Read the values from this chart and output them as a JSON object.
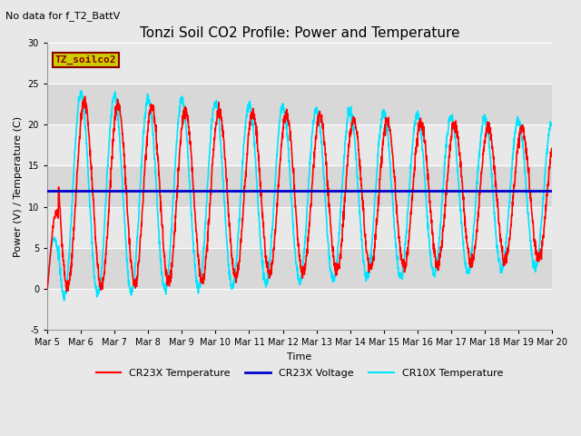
{
  "title": "Tonzi Soil CO2 Profile: Power and Temperature",
  "subtitle": "No data for f_T2_BattV",
  "ylabel": "Power (V) / Temperature (C)",
  "xlabel": "Time",
  "ylim": [
    -5,
    30
  ],
  "yticks": [
    -5,
    0,
    5,
    10,
    15,
    20,
    25,
    30
  ],
  "xtick_labels": [
    "Mar 5",
    "Mar 6",
    "Mar 7",
    "Mar 8",
    "Mar 9",
    "Mar 10",
    "Mar 11",
    "Mar 12",
    "Mar 13",
    "Mar 14",
    "Mar 15",
    "Mar 16",
    "Mar 17",
    "Mar 18",
    "Mar 19",
    "Mar 20"
  ],
  "voltage_level": 12.0,
  "cr23x_color": "#ff0000",
  "cr10x_color": "#00e5ff",
  "voltage_color": "#0000cc",
  "inset_label": "TZ_soilco2",
  "inset_label_color": "#8b0000",
  "inset_box_facecolor": "#cccc00",
  "inset_box_edgecolor": "#8b0000",
  "band_colors": [
    "#e8e8e8",
    "#d8d8d8"
  ],
  "grid_color": "#ffffff",
  "fig_facecolor": "#e8e8e8",
  "title_fontsize": 11,
  "axis_label_fontsize": 8,
  "tick_fontsize": 7,
  "subtitle_fontsize": 8
}
